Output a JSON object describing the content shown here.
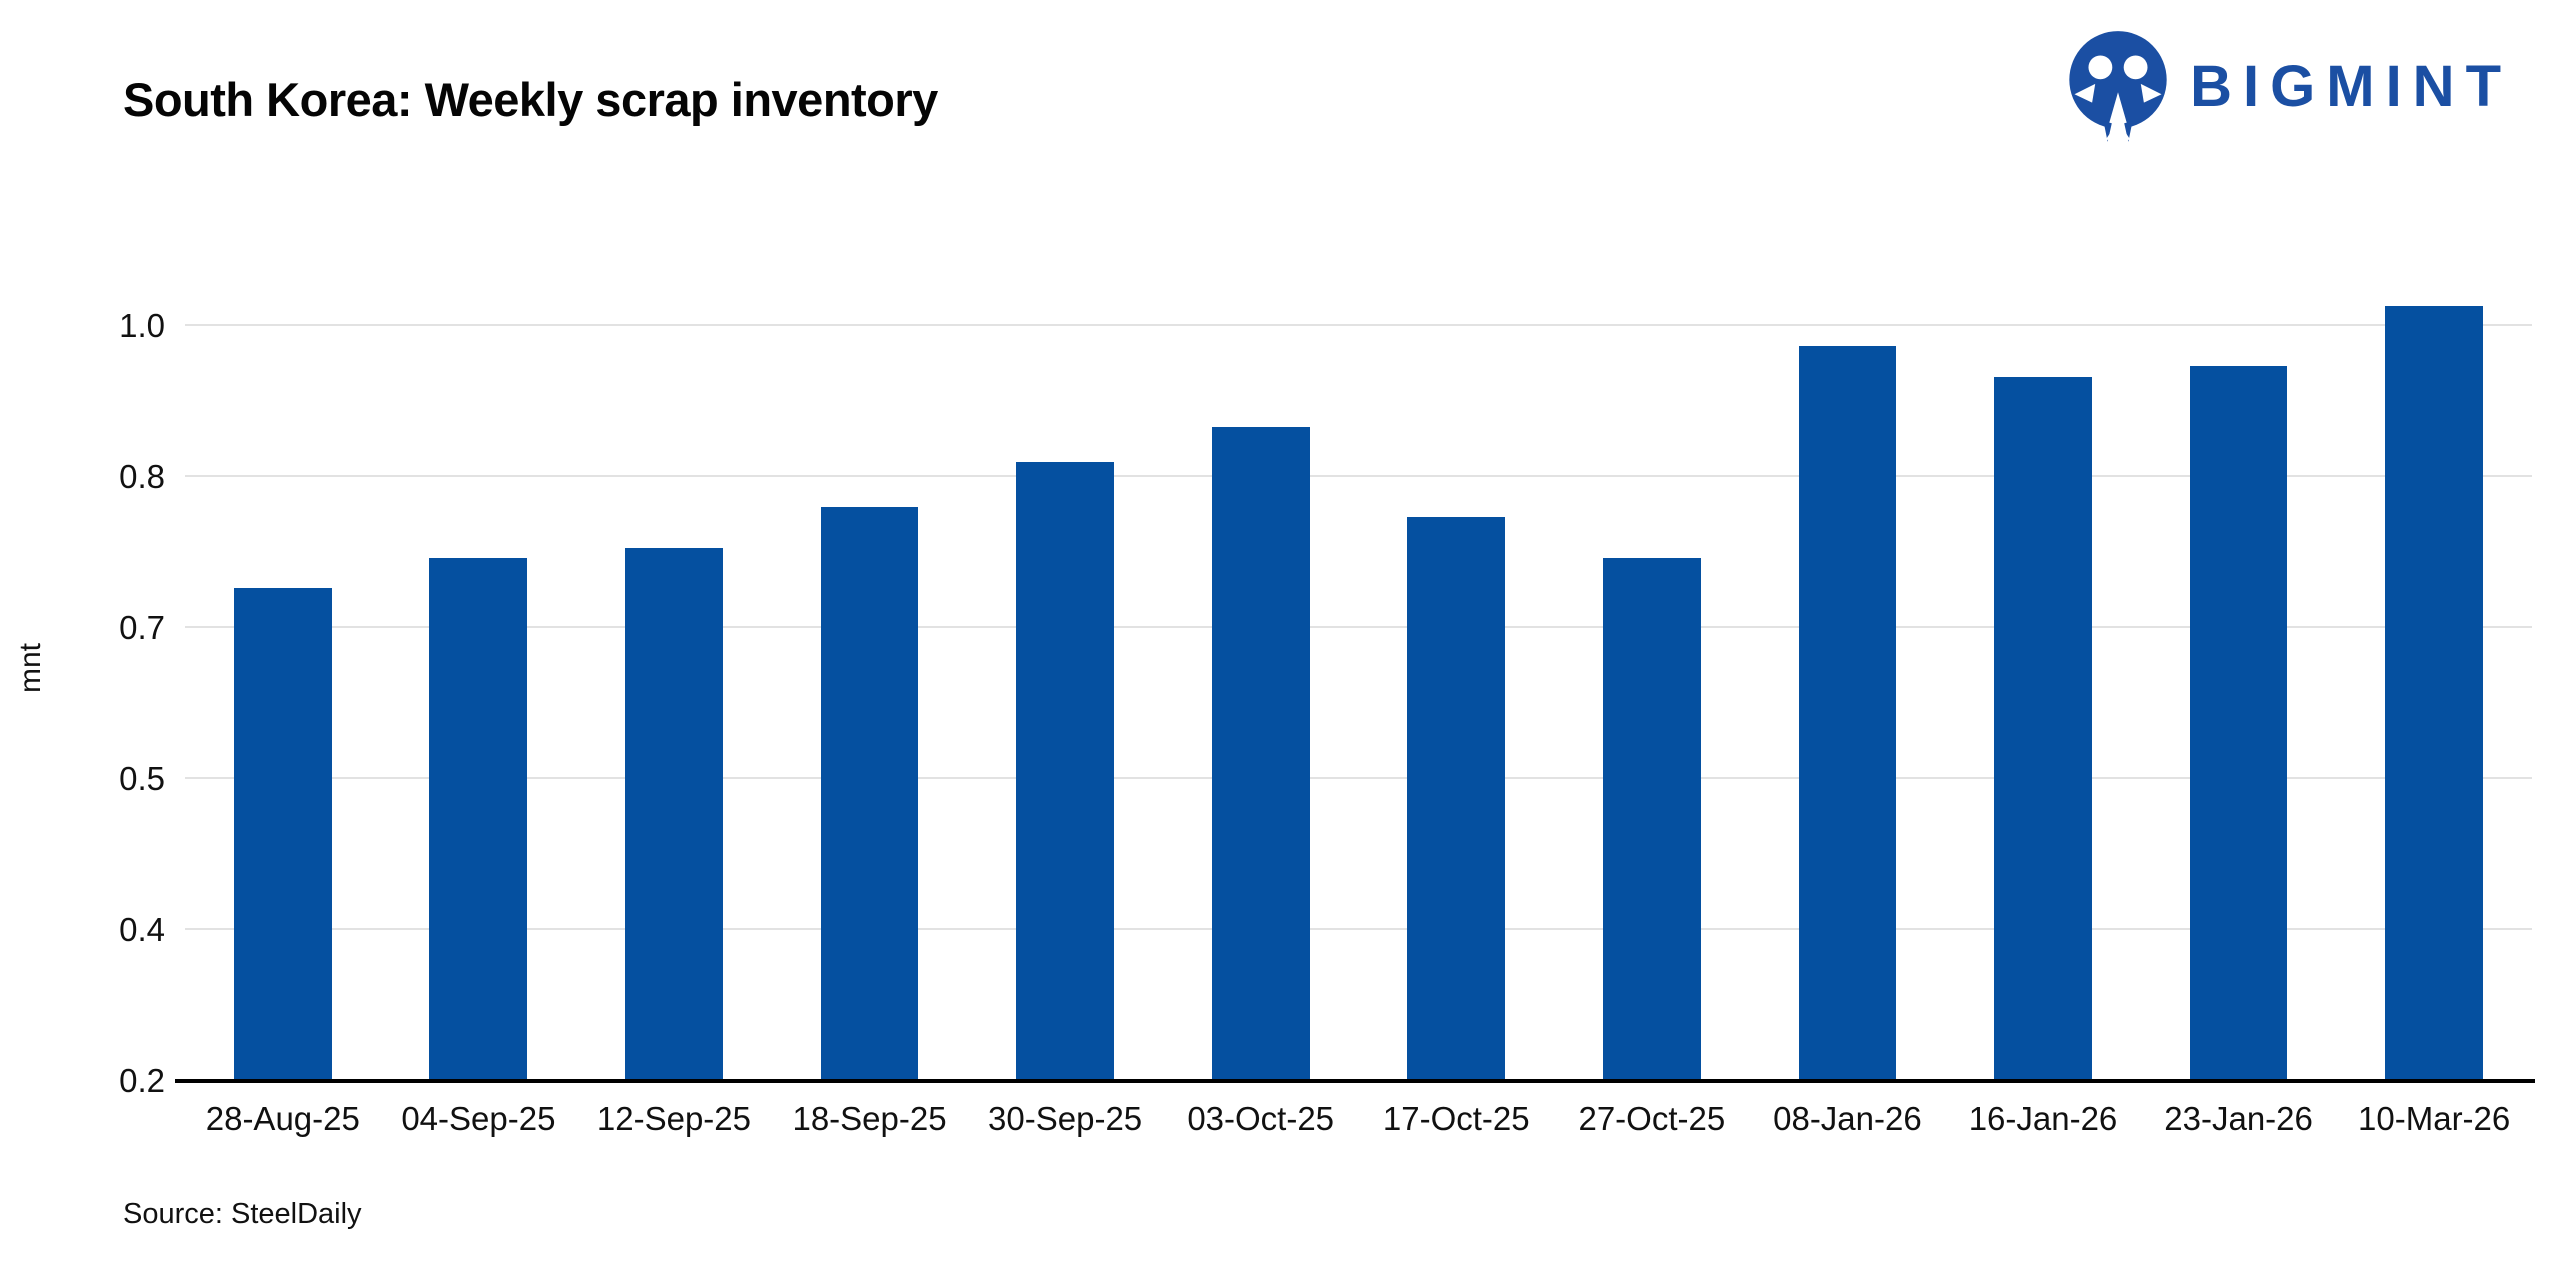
{
  "header": {
    "title": "South Korea: Weekly scrap inventory"
  },
  "logo": {
    "text": "BIGMINT",
    "color": "#1b4fa3"
  },
  "chart_data": {
    "type": "bar",
    "title": "South Korea: Weekly scrap inventory",
    "categories": [
      "28-Aug-25",
      "04-Sep-25",
      "12-Sep-25",
      "18-Sep-25",
      "30-Sep-25",
      "03-Oct-25",
      "17-Oct-25",
      "27-Oct-25",
      "08-Jan-26",
      "16-Jan-26",
      "23-Jan-26",
      "10-Mar-26"
    ],
    "values": [
      0.69,
      0.72,
      0.73,
      0.77,
      0.815,
      0.85,
      0.76,
      0.72,
      0.93,
      0.9,
      0.91,
      0.97
    ],
    "xlabel": "",
    "ylabel": "mnt",
    "ylim": [
      0.2,
      0.976
    ],
    "y_ticks": [
      {
        "label": "1.0",
        "value": 0.95
      },
      {
        "label": "0.8",
        "value": 0.8
      },
      {
        "label": "0.7",
        "value": 0.65
      },
      {
        "label": "0.5",
        "value": 0.5
      },
      {
        "label": "0.4",
        "value": 0.35
      },
      {
        "label": "0.2",
        "value": 0.2
      }
    ],
    "grid": true,
    "legend": "none",
    "bar_color": "#0550a0",
    "gridline_color": "#e2e2e2"
  },
  "footer": {
    "source": "Source: SteelDaily"
  }
}
